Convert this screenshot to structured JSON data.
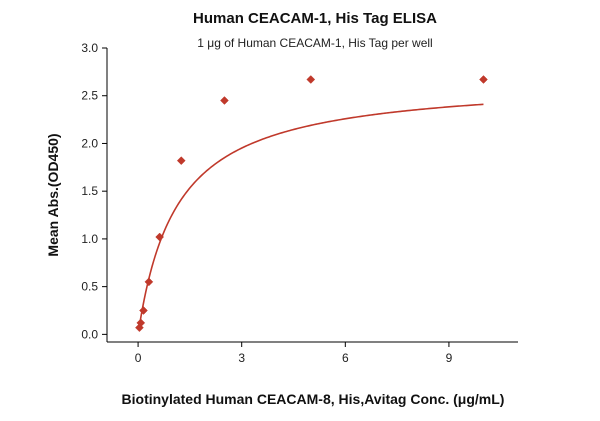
{
  "chart_data": {
    "type": "scatter",
    "title": "Human CEACAM-1, His Tag ELISA",
    "subtitle": "1 μg of Human CEACAM-1, His Tag per well",
    "xlabel": "Biotinylated Human CEACAM-8, His,Avitag Conc. (μg/mL)",
    "ylabel": "Mean Abs.(OD450)",
    "xlim": [
      -0.9,
      11.0
    ],
    "ylim": [
      -0.08,
      3.0
    ],
    "x_ticks": [
      0,
      3,
      6,
      9
    ],
    "y_ticks": [
      0.0,
      0.5,
      1.0,
      1.5,
      2.0,
      2.5,
      3.0
    ],
    "x_tick_labels": [
      "0",
      "3",
      "6",
      "9"
    ],
    "y_tick_labels": [
      "0.0",
      "0.5",
      "1.0",
      "1.5",
      "2.0",
      "2.5",
      "3.0"
    ],
    "grid": false,
    "colors": {
      "series": "#c0392b"
    },
    "series": [
      {
        "x": [
          0.0391,
          0.0781,
          0.156,
          0.3125,
          0.625,
          1.25,
          2.5,
          5,
          10
        ],
        "y": [
          0.07,
          0.12,
          0.25,
          0.55,
          1.02,
          1.82,
          2.45,
          2.67,
          2.67
        ]
      }
    ],
    "fit": {
      "model": "one-site binding",
      "bmax": 2.68,
      "kd": 1.12
    }
  }
}
